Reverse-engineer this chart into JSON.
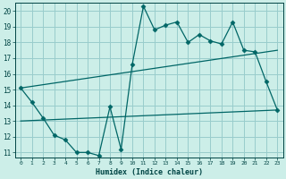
{
  "xlabel": "Humidex (Indice chaleur)",
  "bg_color": "#cceee8",
  "grid_color": "#99cccc",
  "line_color": "#006666",
  "xlim": [
    -0.5,
    23.5
  ],
  "ylim": [
    10.7,
    20.5
  ],
  "xticks": [
    0,
    1,
    2,
    3,
    4,
    5,
    6,
    7,
    8,
    9,
    10,
    11,
    12,
    13,
    14,
    15,
    16,
    17,
    18,
    19,
    20,
    21,
    22,
    23
  ],
  "yticks": [
    11,
    12,
    13,
    14,
    15,
    16,
    17,
    18,
    19,
    20
  ],
  "series1_x": [
    0,
    1,
    2,
    3,
    4,
    5,
    6,
    7,
    8,
    9,
    10,
    11,
    12,
    13,
    14,
    15,
    16,
    17,
    18,
    19,
    20,
    21,
    22,
    23
  ],
  "series1_y": [
    15.1,
    14.2,
    13.2,
    12.1,
    11.8,
    11.0,
    11.0,
    10.8,
    13.9,
    11.2,
    16.6,
    20.3,
    18.8,
    19.1,
    19.3,
    18.0,
    18.5,
    18.1,
    17.9,
    19.3,
    17.5,
    17.4,
    15.5,
    13.7
  ],
  "series2_x": [
    0,
    23
  ],
  "series2_y": [
    15.1,
    17.5
  ],
  "series3_x": [
    0,
    23
  ],
  "series3_y": [
    13.0,
    13.7
  ],
  "marker_size": 2.5,
  "line_width": 0.9
}
